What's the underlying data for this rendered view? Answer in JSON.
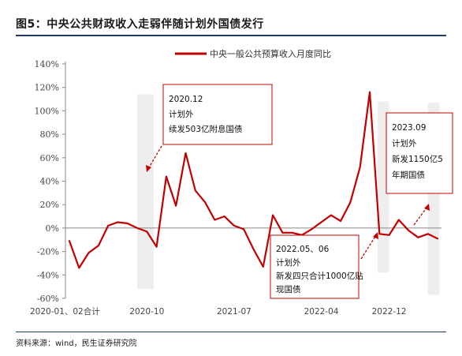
{
  "header": {
    "title": "图5：中央公共财政收入走弱伴随计划外国债发行"
  },
  "footer": {
    "source": "资料来源：wind，民生证券研究院"
  },
  "chart_data": {
    "type": "line",
    "ylim": [
      -60,
      140
    ],
    "yticks": [
      -60,
      -40,
      -20,
      0,
      20,
      40,
      60,
      80,
      100,
      120,
      140
    ],
    "ytick_labels": [
      "-60%",
      "-40%",
      "-20%",
      "0%",
      "20%",
      "40%",
      "60%",
      "80%",
      "100%",
      "120%",
      "140%"
    ],
    "xtick_labels": [
      "2020-01、02合计",
      "2020-10",
      "2021-07",
      "2022-04",
      "2022-12"
    ],
    "xtick_index": [
      0,
      8,
      17,
      26,
      33
    ],
    "legend_position": "top-center",
    "line_color": "#c00000",
    "series": [
      {
        "name": "中央一般公共预算收入月度同比",
        "values": [
          -11,
          -34,
          -21,
          -15,
          2,
          5,
          4,
          0,
          -3,
          -16,
          44,
          19,
          64,
          32,
          22,
          7,
          10,
          2,
          -1,
          -18,
          -33,
          11,
          -4,
          -4,
          -6,
          -1,
          5,
          11,
          6,
          22,
          52,
          116,
          -5,
          -6,
          7,
          -2,
          -8,
          -5,
          -9
        ]
      }
    ],
    "shaded_periods": [
      {
        "from": 7.0,
        "to": 8.7,
        "ymin": -52,
        "ymax": 114
      },
      {
        "from": 31.8,
        "to": 33.0,
        "ymin": -38,
        "ymax": 108
      },
      {
        "from": 37.0,
        "to": 38.2,
        "ymin": -57,
        "ymax": 107
      }
    ],
    "annotations": [
      {
        "lines": [
          "2020.12",
          "计划外",
          "续发503亿附息国债"
        ]
      },
      {
        "lines": [
          "2022.05、06",
          "计划外",
          "新发四只合计1000亿贴",
          "现国债"
        ]
      },
      {
        "lines": [
          "2023.09",
          "计划外",
          "新发1150亿5",
          "年期国债"
        ]
      }
    ]
  }
}
